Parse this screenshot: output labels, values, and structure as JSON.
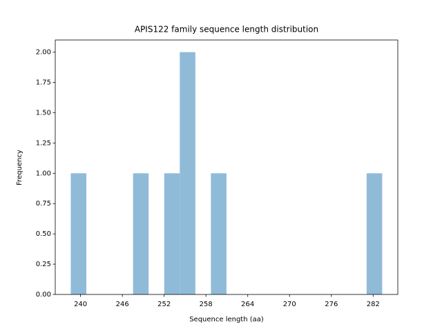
{
  "chart_data": {
    "type": "histogram",
    "title": "APIS122 family sequence length distribution",
    "x_label": "Sequence length (aa)",
    "y_label": "Frequency",
    "bins": [
      238.6,
      240.835,
      243.07,
      245.305,
      247.54,
      249.775,
      252.01,
      254.245,
      256.48,
      258.715,
      260.95,
      263.185,
      265.42,
      267.655,
      269.89,
      272.125,
      274.36,
      276.595,
      278.83,
      281.065,
      283.3
    ],
    "values": [
      1,
      0,
      0,
      0,
      1,
      0,
      1,
      2,
      0,
      1,
      0,
      0,
      0,
      0,
      0,
      0,
      0,
      0,
      0,
      1
    ],
    "color": "#8fbbd9",
    "xlim": [
      236.37,
      285.54
    ],
    "xticks": [
      240,
      246,
      252,
      258,
      264,
      270,
      276,
      282
    ],
    "ylim": [
      0,
      2.1
    ],
    "yticks": [
      {
        "value": 0,
        "label": "0.00"
      },
      {
        "value": 0.25,
        "label": "0.25"
      },
      {
        "value": 0.5,
        "label": "0.50"
      },
      {
        "value": 0.75,
        "label": "0.75"
      },
      {
        "value": 1,
        "label": "1.00"
      },
      {
        "value": 1.25,
        "label": "1.25"
      },
      {
        "value": 1.5,
        "label": "1.50"
      },
      {
        "value": 1.75,
        "label": "1.75"
      },
      {
        "value": 2,
        "label": "2.00"
      }
    ],
    "grid": false
  }
}
